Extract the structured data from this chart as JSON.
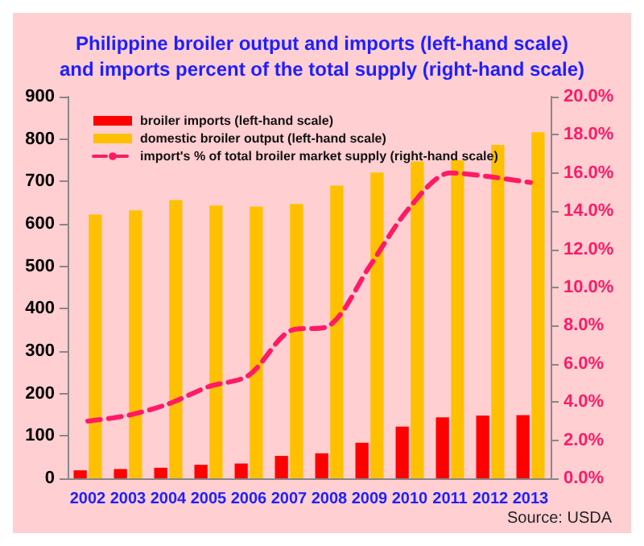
{
  "chart_data": {
    "type": "bar",
    "title": "Philippine broiler output and imports (left-hand scale)\nand imports percent of the total supply (right-hand scale)",
    "categories": [
      "2002",
      "2003",
      "2004",
      "2005",
      "2006",
      "2007",
      "2008",
      "2009",
      "2010",
      "2011",
      "2012",
      "2013"
    ],
    "series": [
      {
        "name": "broiler imports (left-hand scale)",
        "color": "#ff0000",
        "values": [
          19,
          22,
          25,
          32,
          35,
          53,
          59,
          84,
          122,
          144,
          148,
          149
        ]
      },
      {
        "name": "domestic broiler output (left-hand scale)",
        "color": "#ffc000",
        "values": [
          622,
          632,
          656,
          643,
          641,
          647,
          690,
          721,
          747,
          750,
          786,
          816
        ]
      },
      {
        "name": "import's % of total broiler market supply (right-hand scale)",
        "type": "line",
        "axis": "y2",
        "color": "#ff1a66",
        "line_style": "dashed",
        "marker": "none",
        "values": [
          3.0,
          3.3,
          3.9,
          4.8,
          5.4,
          7.7,
          8.0,
          11.1,
          14.2,
          16.0,
          15.8,
          15.5
        ]
      }
    ],
    "ylim": [
      0,
      900
    ],
    "yticks": [
      0,
      100,
      200,
      300,
      400,
      500,
      600,
      700,
      800,
      900
    ],
    "y2lim": [
      0,
      20
    ],
    "y2ticks": [
      {
        "value": 0,
        "label": "0.0%"
      },
      {
        "value": 2,
        "label": "2.0%"
      },
      {
        "value": 4,
        "label": "4.0%"
      },
      {
        "value": 6,
        "label": "6.0%"
      },
      {
        "value": 8,
        "label": "8.0%"
      },
      {
        "value": 10,
        "label": "10.0%"
      },
      {
        "value": 12,
        "label": "12.0%"
      },
      {
        "value": 14,
        "label": "14.0%"
      },
      {
        "value": 16,
        "label": "16.0%"
      },
      {
        "value": 18,
        "label": "18.0%"
      },
      {
        "value": 20,
        "label": "20.0%"
      }
    ],
    "grid": false,
    "legend": "top left",
    "annotations": [
      "Source: USDA"
    ]
  }
}
